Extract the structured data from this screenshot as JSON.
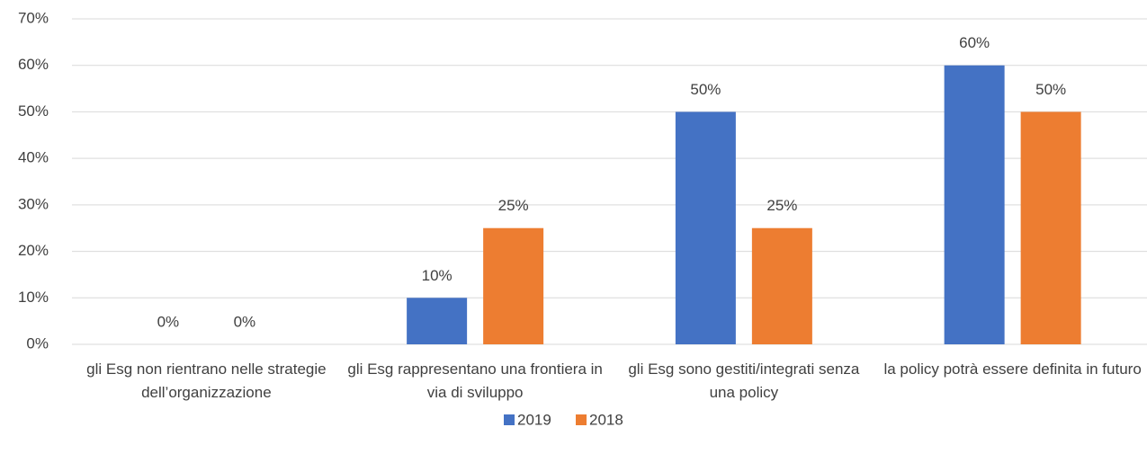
{
  "chart_data": {
    "type": "bar",
    "categories": [
      "gli Esg non rientrano nelle strategie dell’organizzazione",
      "gli Esg rappresentano una frontiera in via di sviluppo",
      "gli Esg sono gestiti/integrati senza una policy",
      "la policy potrà essere definita in futuro"
    ],
    "series": [
      {
        "name": "2019",
        "color": "#4472c4",
        "values": [
          0,
          10,
          50,
          60
        ],
        "value_labels": [
          "0%",
          "10%",
          "50%",
          "60%"
        ]
      },
      {
        "name": "2018",
        "color": "#ed7d31",
        "values": [
          0,
          25,
          25,
          50
        ],
        "value_labels": [
          "0%",
          "25%",
          "25%",
          "50%"
        ]
      }
    ],
    "ylim": [
      0,
      70
    ],
    "yticks": [
      {
        "value": 0,
        "label": "0%"
      },
      {
        "value": 10,
        "label": "10%"
      },
      {
        "value": 20,
        "label": "20%"
      },
      {
        "value": 30,
        "label": "30%"
      },
      {
        "value": 40,
        "label": "40%"
      },
      {
        "value": 50,
        "label": "50%"
      },
      {
        "value": 60,
        "label": "60%"
      },
      {
        "value": 70,
        "label": "70%"
      }
    ],
    "grid": true,
    "legend": "bottom"
  }
}
